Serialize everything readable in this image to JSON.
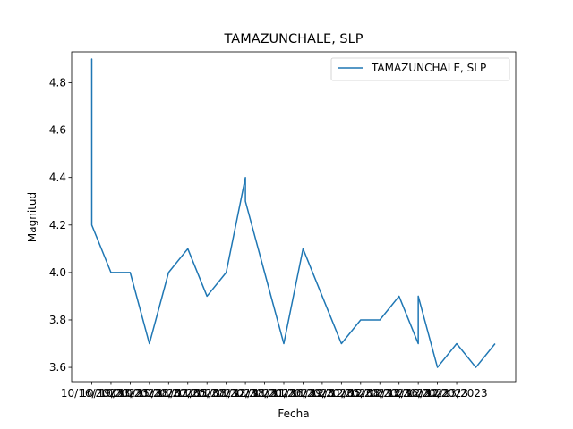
{
  "chart_data": {
    "type": "line",
    "title": "TAMAZUNCHALE, SLP",
    "xlabel": "Fecha",
    "ylabel": "Magnitud",
    "legend": {
      "placement": "top-right",
      "entries": [
        "TAMAZUNCHALE, SLP"
      ]
    },
    "grid": false,
    "ylim": [
      3.54,
      4.93
    ],
    "yticks": [
      "3.6",
      "3.8",
      "4.0",
      "4.2",
      "4.4",
      "4.6",
      "4.8"
    ],
    "xtick_labels": [
      "10/16/2023",
      "10/19/2023",
      "10/23/2023",
      "10/25/2023",
      "10/28/2023",
      "11/02/2023",
      "11/05/2023",
      "11/08/2023",
      "11/12/2023",
      "11/18/2023",
      "11/21/2023",
      "11/26/2023",
      "11/29/2023",
      "12/01/2023",
      "12/05/2023",
      "12/08/2023",
      "12/13/2023",
      "12/16/2023",
      "12/20/2023",
      "12/23/2023"
    ],
    "series": [
      {
        "name": "TAMAZUNCHALE, SLP",
        "color": "#1f77b4",
        "points": [
          {
            "i": 0,
            "y": 4.7
          },
          {
            "i": 0,
            "y": 4.9
          },
          {
            "i": 0,
            "y": 4.8
          },
          {
            "i": 0,
            "y": 4.9
          },
          {
            "i": 0,
            "y": 4.2
          },
          {
            "i": 1,
            "y": 4.0
          },
          {
            "i": 2,
            "y": 4.0
          },
          {
            "i": 3,
            "y": 3.7
          },
          {
            "i": 4,
            "y": 4.0
          },
          {
            "i": 5,
            "y": 4.1
          },
          {
            "i": 6,
            "y": 3.9
          },
          {
            "i": 7,
            "y": 4.0
          },
          {
            "i": 8,
            "y": 4.4
          },
          {
            "i": 8,
            "y": 4.3
          },
          {
            "i": 9,
            "y": 4.0
          },
          {
            "i": 10,
            "y": 3.7
          },
          {
            "i": 11,
            "y": 4.1
          },
          {
            "i": 12,
            "y": 3.9
          },
          {
            "i": 13,
            "y": 3.7
          },
          {
            "i": 14,
            "y": 3.8
          },
          {
            "i": 15,
            "y": 3.8
          },
          {
            "i": 16,
            "y": 3.9
          },
          {
            "i": 17,
            "y": 3.7
          },
          {
            "i": 17,
            "y": 3.9
          },
          {
            "i": 18,
            "y": 3.6
          },
          {
            "i": 19,
            "y": 3.7
          },
          {
            "i": 20,
            "y": 3.6
          },
          {
            "i": 21,
            "y": 3.7
          }
        ]
      }
    ]
  }
}
